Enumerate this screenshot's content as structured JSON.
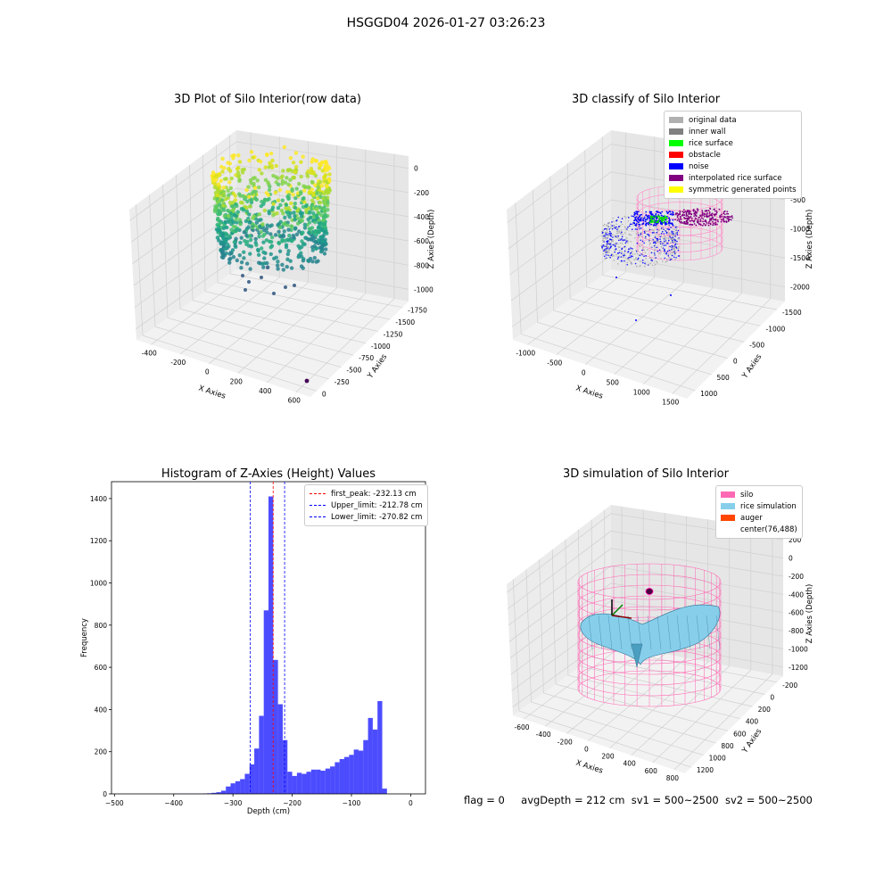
{
  "suptitle": "HSGGD04 2026-01-27 03:26:23",
  "panels": {
    "raw": {
      "title": "3D Plot of Silo Interior(row data)",
      "xlabel": "X Axies",
      "ylabel": "Y Axies",
      "zlabel": "Z Axies (Depth)",
      "xticks": [
        "-400",
        "-200",
        "0",
        "200",
        "400",
        "600"
      ],
      "yticks": [
        "0",
        "-250",
        "-500",
        "-750",
        "-1000",
        "-1250",
        "-1500",
        "-1750"
      ],
      "zticks": [
        "0",
        "-200",
        "-400",
        "-600",
        "-800",
        "-1000"
      ]
    },
    "classify": {
      "title": "3D classify of Silo Interior",
      "xlabel": "X Axies",
      "ylabel": "Y Axies",
      "zlabel": "Z Axies (Depth)",
      "xticks": [
        "-1000",
        "-500",
        "0",
        "500",
        "1000",
        "1500"
      ],
      "yticks": [
        "1000",
        "500",
        "0",
        "-500",
        "-1000",
        "-1500"
      ],
      "zticks": [
        "0",
        "-500",
        "-1000",
        "-1500",
        "-2000"
      ],
      "legend": [
        {
          "label": "original data",
          "color": "#b0b0b0"
        },
        {
          "label": "inner wall",
          "color": "#808080"
        },
        {
          "label": "rice surface",
          "color": "#00ff00"
        },
        {
          "label": "obstacle",
          "color": "#ff0000"
        },
        {
          "label": "noise",
          "color": "#0000ff"
        },
        {
          "label": "interpolated rice surface",
          "color": "#800080"
        },
        {
          "label": "symmetric generated points",
          "color": "#ffff00"
        }
      ]
    },
    "simulation": {
      "title": "3D simulation of Silo Interior",
      "xlabel": "X Axies",
      "ylabel": "Y Axies",
      "zlabel": "Z Axies (Depth)",
      "xticks": [
        "-600",
        "-400",
        "-200",
        "0",
        "200",
        "400",
        "600",
        "800"
      ],
      "yticks": [
        "1200",
        "1000",
        "800",
        "600",
        "400",
        "200",
        "0",
        "-200"
      ],
      "zticks": [
        "200",
        "0",
        "-200",
        "-400",
        "-600",
        "-800",
        "-1000",
        "-1200"
      ],
      "legend": [
        {
          "label": "silo",
          "color": "#ff69b4"
        },
        {
          "label": "rice simulation",
          "color": "#87ceeb"
        },
        {
          "label": "auger",
          "color": "#ff4500"
        },
        {
          "label": "center(76,488)",
          "color": "#ffffff"
        }
      ]
    }
  },
  "chart_data": [
    {
      "type": "bar",
      "title": "Histogram of Z-Axies (Height) Values",
      "xlabel": "Depth (cm)",
      "ylabel": "Frequency",
      "xlim": [
        -505,
        25
      ],
      "ylim": [
        0,
        1480
      ],
      "xticks": [
        -500,
        -400,
        -300,
        -200,
        -100,
        0
      ],
      "yticks": [
        0,
        200,
        400,
        600,
        800,
        1000,
        1200,
        1400
      ],
      "bin_width": 8,
      "bins_start": [
        -400,
        -392,
        -384,
        -376,
        -368,
        -360,
        -352,
        -344,
        -336,
        -328,
        -320,
        -312,
        -304,
        -296,
        -288,
        -280,
        -272,
        -264,
        -256,
        -248,
        -240,
        -232,
        -224,
        -216,
        -208,
        -200,
        -192,
        -184,
        -176,
        -168,
        -160,
        -152,
        -144,
        -136,
        -128,
        -120,
        -112,
        -104,
        -96,
        -88,
        -80,
        -72,
        -64,
        -56,
        -48,
        -40,
        -32,
        -24,
        -16,
        -8
      ],
      "values": [
        1,
        1,
        1,
        1,
        1,
        1,
        2,
        3,
        5,
        8,
        15,
        35,
        50,
        60,
        70,
        95,
        140,
        215,
        370,
        870,
        1410,
        635,
        425,
        255,
        105,
        85,
        100,
        95,
        105,
        115,
        115,
        110,
        120,
        130,
        150,
        165,
        175,
        185,
        210,
        205,
        255,
        360,
        305,
        440,
        25,
        0,
        0,
        0,
        0,
        0
      ],
      "bins_note": "",
      "color": "#0000ff",
      "vlines": [
        {
          "label": "first_peak: -232.13 cm",
          "x": -232.13,
          "color": "#ff0000"
        },
        {
          "label": "Upper_limit: -212.78 cm",
          "x": -212.78,
          "color": "#0000ff"
        },
        {
          "label": "Lower_limit: -270.82 cm",
          "x": -270.82,
          "color": "#0000ff"
        }
      ],
      "legend_position": "top-right",
      "grid": false
    }
  ],
  "footer": {
    "flag": "flag = 0",
    "avg": "avgDepth = 212 cm",
    "sv1": "sv1 = 500~2500",
    "sv2": "sv2 = 500~2500"
  }
}
